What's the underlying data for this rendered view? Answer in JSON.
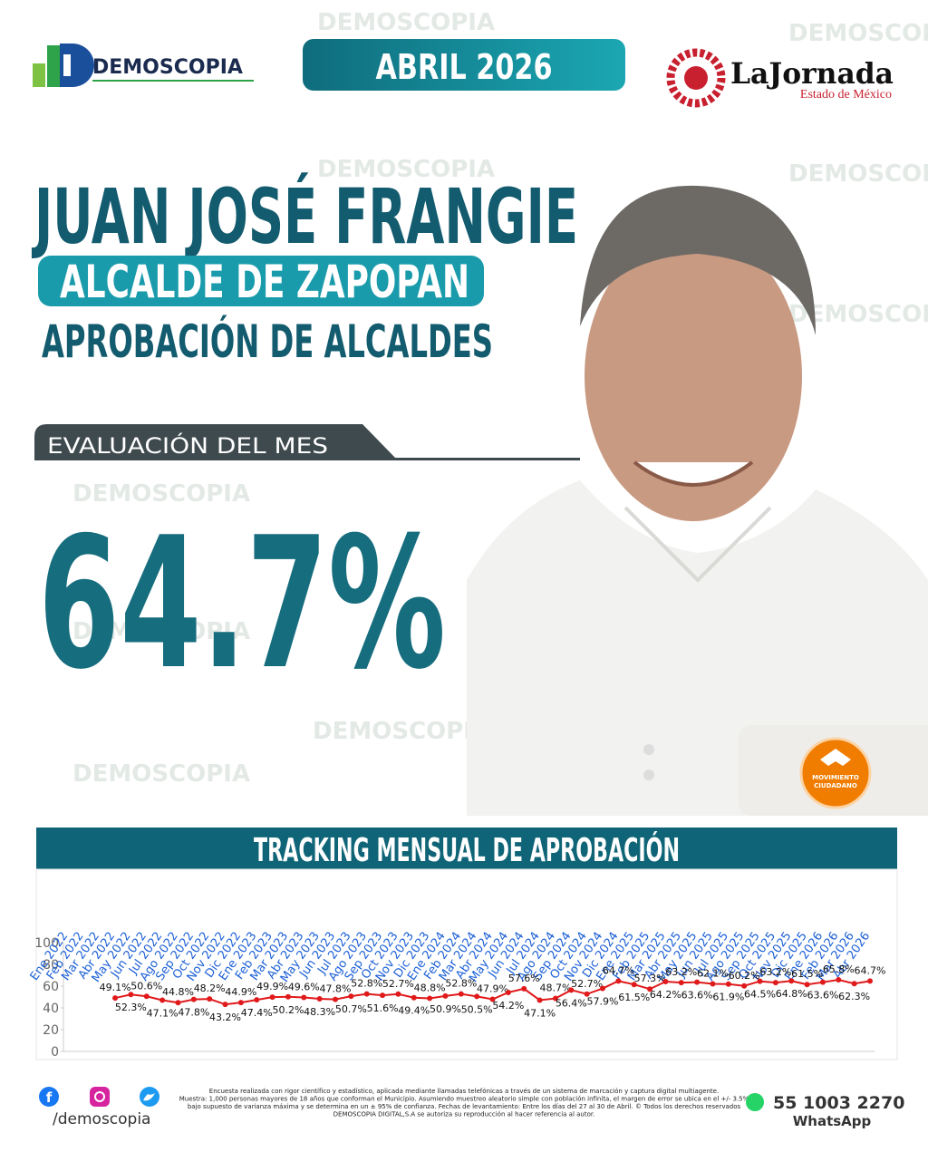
{
  "header": {
    "brand": "DEMOSCOPIA",
    "date": "ABRIL 2026",
    "newspaper": "LaJornada",
    "newspaper_sub": "Estado de México"
  },
  "title": "JUAN JOSÉ FRANGIE",
  "role": "ALCALDE DE ZAPOPAN",
  "subtitle": "APROBACIÓN DE ALCALDES",
  "evaluation": {
    "label": "EVALUACIÓN DEL MES",
    "value": "64.7%"
  },
  "party": {
    "line1": "MOVIMIENTO",
    "line2": "CIUDADANO"
  },
  "chart_data": {
    "type": "line",
    "title": "TRACKING MENSUAL DE APROBACIÓN",
    "categories": [
      "Ene 2022",
      "Feb 2022",
      "Mar 2022",
      "Abr 2022",
      "May 2022",
      "Jun 2022",
      "Jul 2022",
      "Ago 2022",
      "Sep 2022",
      "Oct 2022",
      "Nov 2022",
      "Dic 2022",
      "Ene 2023",
      "Feb 2023",
      "Mar 2023",
      "Abr 2023",
      "May 2023",
      "Jun 2023",
      "Jul 2023",
      "Ago 2023",
      "Sep 2023",
      "Oct 2023",
      "Nov 2023",
      "Dic 2023",
      "Ene 2024",
      "Feb 2024",
      "Mar 2024",
      "Abr 2024",
      "May 2024",
      "Jun 2024",
      "Jul 2024",
      "Ago 2024",
      "Sep 2024",
      "Oct 2024",
      "Nov 2024",
      "Dic 2024",
      "Ene 2025",
      "Feb 2025",
      "Mar 2025",
      "Abr 2025",
      "May 2025",
      "Jun 2025",
      "Jul 2025",
      "Ago 2025",
      "Sep 2025",
      "Oct 2025",
      "Nov 2025",
      "Dic 2025",
      "Ene 2026",
      "Feb 2026",
      "Mar 2026",
      "Abr 2026"
    ],
    "values": [
      null,
      null,
      null,
      49.1,
      52.3,
      50.6,
      47.1,
      44.8,
      47.8,
      48.2,
      43.2,
      44.9,
      47.4,
      49.9,
      50.2,
      49.6,
      48.3,
      47.8,
      50.7,
      52.8,
      51.6,
      52.7,
      49.4,
      48.8,
      50.9,
      52.8,
      50.5,
      47.9,
      54.2,
      57.6,
      47.1,
      48.7,
      56.4,
      52.7,
      57.9,
      64.7,
      61.5,
      57.3,
      64.2,
      63.2,
      63.6,
      62.1,
      61.9,
      60.2,
      64.5,
      63.2,
      64.8,
      61.5,
      63.6,
      65.8,
      62.3,
      64.7
    ],
    "value_labels": [
      null,
      null,
      null,
      "49.1%",
      "52.3%",
      "50.6%",
      "47.1%",
      "44.8%",
      "47.8%",
      "48.2%",
      "43.2%",
      "44.9%",
      "47.4%",
      "49.9%",
      "50.2%",
      "49.6%",
      "48.3%",
      "47.8%",
      "50.7%",
      "52.8%",
      "51.6%",
      "52.7%",
      "49.4%",
      "48.8%",
      "50.9%",
      "52.8%",
      "50.5%",
      "47.9%",
      "54.2%",
      "57.6%",
      "47.1%",
      "48.7%",
      "56.4%",
      "52.7%",
      "57.9%",
      "64.7%",
      "61.5%",
      "57.3%",
      "64.2%",
      "63.2%",
      "63.6%",
      "62.1%",
      "61.9%",
      "60.2%",
      "64.5%",
      "63.2%",
      "64.8%",
      "61.5%",
      "63.6%",
      "65.8%",
      "62.3%",
      "64.7%"
    ],
    "color": "#e0191b",
    "ylim": [
      0,
      100
    ],
    "yticks": [
      0,
      20,
      40,
      60,
      80,
      100
    ],
    "grid": false
  },
  "footer": {
    "handle": "/demoscopia",
    "disclaimer": [
      "Encuesta realizada con rigor científico y estadístico, aplicada mediante llamadas telefónicas a través de un sistema de marcación y captura digital multiagente.",
      "Muestra: 1,000 personas mayores de 18 años que conforman el Municipio. Asumiendo muestreo aleatorio simple con población infinita, el margen de error se ubica en el +/- 3.5%",
      "bajo supuesto de varianza máxima y se determina en un ± 95% de confianza. Fechas de levantamiento: Entre los días del 27 al 30 de Abril. © Todos los derechos reservados",
      "DEMOSCOPIA DIGITAL,S.A se autoriza su reproducción al hacer referencia al autor."
    ],
    "phone": "55 1003 2270",
    "phone_label": "WhatsApp"
  }
}
